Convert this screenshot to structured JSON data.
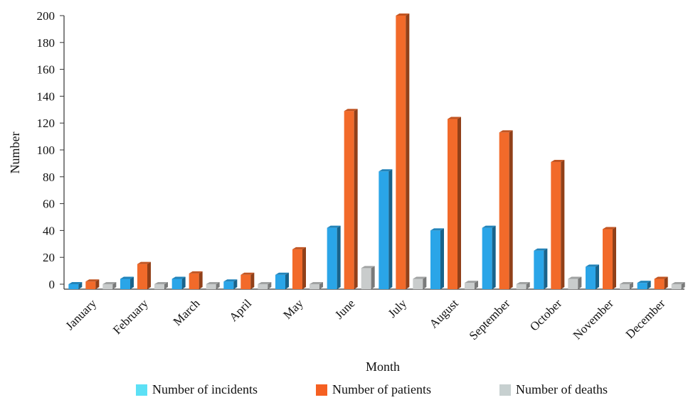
{
  "chart_data": {
    "type": "bar",
    "title": "",
    "xlabel": "Month",
    "ylabel": "Number",
    "ylim": [
      0,
      200
    ],
    "yticks": [
      0,
      20,
      40,
      60,
      80,
      100,
      120,
      140,
      160,
      180,
      200
    ],
    "grid": false,
    "legend_position": "bottom",
    "categories": [
      "January",
      "February",
      "March",
      "April",
      "May",
      "June",
      "July",
      "August",
      "September",
      "October",
      "November",
      "December"
    ],
    "series": [
      {
        "name": "Number of incidents",
        "color": "#2aa5e8",
        "legend_color": "#5ce0f5",
        "values": [
          0,
          4,
          4,
          2,
          7,
          42,
          84,
          40,
          42,
          25,
          13,
          1
        ]
      },
      {
        "name": "Number of patients",
        "color": "#f26a2a",
        "legend_color": "#f56022",
        "values": [
          2,
          15,
          8,
          7,
          26,
          129,
          200,
          123,
          113,
          91,
          41,
          4
        ]
      },
      {
        "name": "Number of deaths",
        "color": "#c9cccc",
        "legend_color": "#c7d0d0",
        "values": [
          0,
          0,
          0,
          0,
          0,
          12,
          4,
          1,
          0,
          4,
          0,
          0
        ]
      }
    ]
  }
}
